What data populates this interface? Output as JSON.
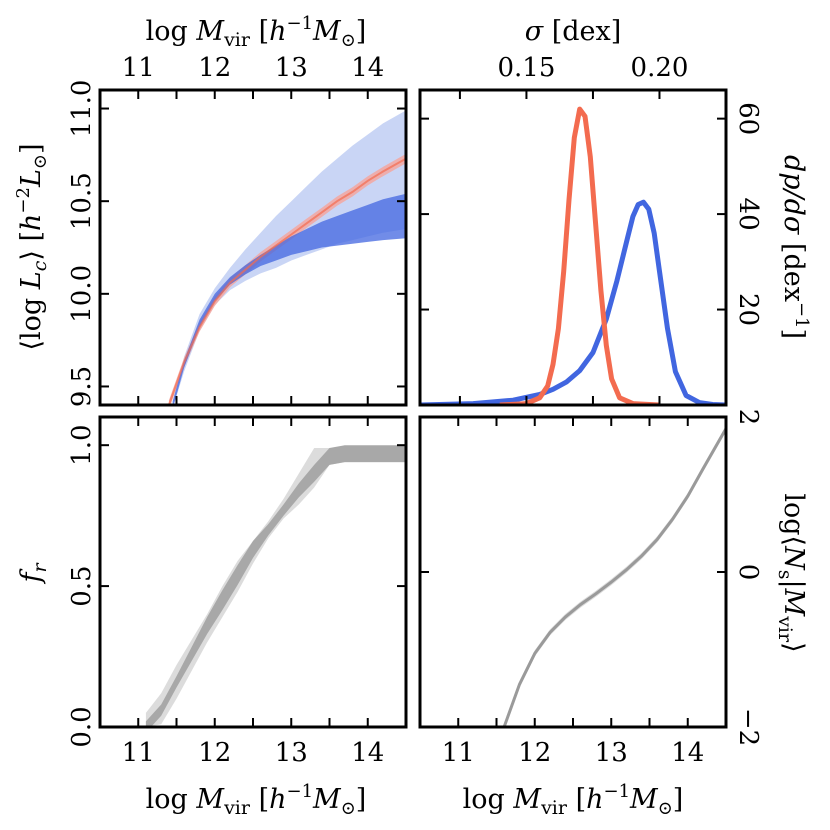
{
  "labels": {
    "top_left_x": "log M_vir [h^-1 M_⊙]",
    "top_right_x": "σ [dex]",
    "bottom_left_x": "log M_vir [h^-1 M_⊙]",
    "bottom_right_x": "log M_vir [h^-1 M_⊙]",
    "y_top_left": "⟨log L_c⟩ [h^-2 L_⊙]",
    "y_top_right": "dp/dσ [dex^-1]",
    "y_bottom_left": "f_r",
    "y_bottom_right": "log⟨N_s|M_vir⟩"
  },
  "colors": {
    "red": "#f36b4f",
    "blue": "#4166e0",
    "blue_light": "#c9d5f5",
    "blue_mid": "#8ea6ea",
    "red_band": "#f3a7a0",
    "gray_light": "#dcdcdc",
    "gray_dark": "#a8a8a8",
    "gray_line": "#9a9a9a"
  },
  "chart_data": [
    {
      "id": "central-luminosity",
      "type": "line",
      "xlim": [
        10.5,
        14.5
      ],
      "ylim": [
        9.4,
        11.1
      ],
      "xticks": [
        "11",
        "12",
        "13",
        "14"
      ],
      "yticks": [
        "9.5",
        "10.0",
        "10.5",
        "11.0"
      ],
      "series": [
        {
          "color": "red",
          "x": [
            11.4,
            11.6,
            11.8,
            12.0,
            12.2,
            12.4,
            12.6,
            12.8,
            13.0,
            13.2,
            13.4,
            13.6,
            13.8,
            14.0,
            14.2,
            14.5
          ],
          "y": [
            9.4,
            9.63,
            9.82,
            9.96,
            10.06,
            10.13,
            10.2,
            10.26,
            10.32,
            10.38,
            10.44,
            10.5,
            10.55,
            10.61,
            10.66,
            10.73
          ],
          "band_halfwidth": 0.025
        },
        {
          "color": "blue",
          "x": [
            11.45,
            11.6,
            11.8,
            12.0,
            12.2,
            12.4,
            12.6,
            12.8,
            13.0,
            13.2,
            13.4,
            13.6,
            13.8,
            14.0,
            14.2,
            14.5
          ],
          "y": [
            9.4,
            9.62,
            9.84,
            9.98,
            10.07,
            10.13,
            10.18,
            10.22,
            10.26,
            10.29,
            10.32,
            10.34,
            10.36,
            10.38,
            10.4,
            10.42
          ],
          "band_inner_halfwidth": [
            0.02,
            0.02,
            0.02,
            0.02,
            0.02,
            0.025,
            0.03,
            0.04,
            0.05,
            0.06,
            0.07,
            0.08,
            0.09,
            0.1,
            0.11,
            0.12
          ],
          "band_outer_upper": [
            9.42,
            9.66,
            9.89,
            10.03,
            10.14,
            10.24,
            10.33,
            10.42,
            10.5,
            10.58,
            10.66,
            10.73,
            10.8,
            10.86,
            10.92,
            10.99
          ],
          "band_outer_lower": [
            9.38,
            9.58,
            9.8,
            9.94,
            10.02,
            10.07,
            10.11,
            10.14,
            10.18,
            10.21,
            10.24,
            10.27,
            10.29,
            10.31,
            10.33,
            10.35
          ]
        }
      ]
    },
    {
      "id": "scatter-posterior",
      "type": "line",
      "xlim": [
        0.11,
        0.225
      ],
      "ylim": [
        0,
        66
      ],
      "xticks": [
        "0.15",
        "0.20"
      ],
      "yticks": [
        "20",
        "40",
        "60"
      ],
      "ytick_values": [
        0,
        20,
        40,
        60
      ],
      "series": [
        {
          "color": "red",
          "x": [
            0.14,
            0.15,
            0.155,
            0.158,
            0.16,
            0.162,
            0.164,
            0.166,
            0.168,
            0.17,
            0.172,
            0.174,
            0.176,
            0.178,
            0.18,
            0.182,
            0.185,
            0.19,
            0.2
          ],
          "y": [
            0.0,
            0.3,
            1.5,
            4.0,
            8.5,
            16.0,
            28.0,
            43.0,
            56.0,
            62.0,
            60.5,
            52.0,
            38.0,
            24.0,
            12.5,
            5.5,
            1.5,
            0.3,
            0.0
          ]
        },
        {
          "color": "blue",
          "x": [
            0.11,
            0.13,
            0.145,
            0.155,
            0.16,
            0.165,
            0.17,
            0.175,
            0.18,
            0.184,
            0.188,
            0.19,
            0.192,
            0.194,
            0.196,
            0.198,
            0.2,
            0.203,
            0.206,
            0.21,
            0.215,
            0.22,
            0.225
          ],
          "y": [
            0.0,
            0.3,
            1.0,
            2.2,
            3.3,
            4.8,
            7.2,
            11.0,
            18.0,
            26.0,
            35.0,
            39.5,
            42.0,
            42.5,
            41.0,
            36.0,
            28.0,
            16.0,
            7.0,
            2.0,
            0.5,
            0.1,
            0.0
          ]
        }
      ]
    },
    {
      "id": "red-fraction",
      "type": "area",
      "xlim": [
        10.5,
        14.5
      ],
      "ylim": [
        0.0,
        1.1
      ],
      "xticks": [
        "11",
        "12",
        "13",
        "14"
      ],
      "yticks": [
        "0.0",
        "0.5",
        "1.0"
      ],
      "series": [
        {
          "color": "gray_dark",
          "x": [
            11.1,
            11.3,
            11.5,
            11.7,
            11.9,
            12.1,
            12.3,
            12.5,
            12.7,
            12.9,
            13.1,
            13.3,
            13.5,
            13.7,
            14.0,
            14.5
          ],
          "y": [
            0.0,
            0.06,
            0.16,
            0.26,
            0.36,
            0.45,
            0.54,
            0.63,
            0.7,
            0.77,
            0.84,
            0.9,
            0.96,
            0.97,
            0.97,
            0.97
          ],
          "band_inner_halfwidth": [
            0.02,
            0.02,
            0.02,
            0.025,
            0.03,
            0.035,
            0.035,
            0.03,
            0.02,
            0.02,
            0.025,
            0.03,
            0.03,
            0.03,
            0.03,
            0.03
          ],
          "band_outer_upper": [
            0.05,
            0.12,
            0.22,
            0.31,
            0.4,
            0.5,
            0.59,
            0.66,
            0.73,
            0.81,
            0.9,
            0.99,
            0.99,
            0.99,
            0.99,
            0.99
          ],
          "band_outer_lower": [
            0.0,
            0.01,
            0.1,
            0.2,
            0.3,
            0.39,
            0.48,
            0.58,
            0.67,
            0.74,
            0.79,
            0.85,
            0.93,
            0.94,
            0.94,
            0.94
          ]
        }
      ]
    },
    {
      "id": "satellite-occupation",
      "type": "line",
      "xlim": [
        10.5,
        14.5
      ],
      "ylim": [
        -2.0,
        2.0
      ],
      "xticks": [
        "11",
        "12",
        "13",
        "14"
      ],
      "yticks": [
        "−2",
        "0",
        "2"
      ],
      "ytick_values": [
        -2,
        0,
        2
      ],
      "series": [
        {
          "color": "gray_line",
          "x": [
            11.6,
            11.8,
            12.0,
            12.2,
            12.4,
            12.6,
            12.8,
            13.0,
            13.2,
            13.4,
            13.6,
            13.8,
            14.0,
            14.2,
            14.5
          ],
          "y": [
            -2.0,
            -1.45,
            -1.05,
            -0.78,
            -0.58,
            -0.42,
            -0.28,
            -0.13,
            0.03,
            0.21,
            0.42,
            0.68,
            0.98,
            1.33,
            1.85
          ],
          "band_halfwidth": 0.04
        }
      ]
    }
  ]
}
